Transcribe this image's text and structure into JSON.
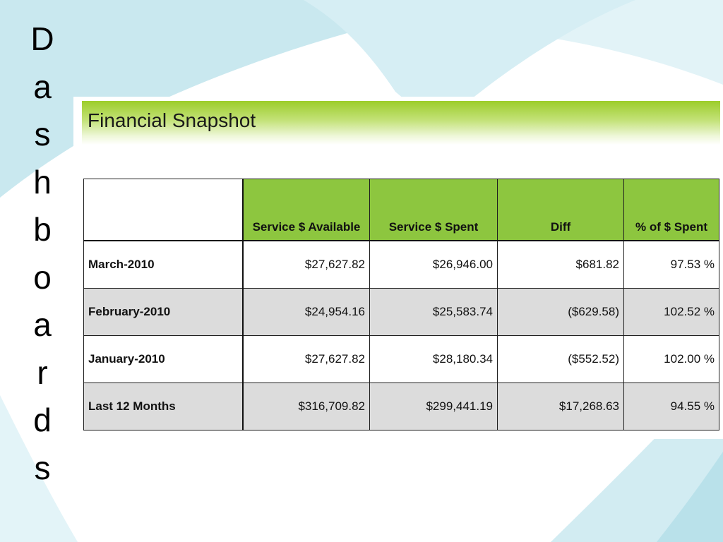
{
  "slide": {
    "vertical_title_letters": [
      "D",
      "a",
      "s",
      "h",
      "b",
      "o",
      "a",
      "r",
      "d",
      "s"
    ]
  },
  "snapshot": {
    "title": "Financial Snapshot",
    "header_color": "#8dc63f",
    "columns": [
      "",
      "Service $ Available",
      "Service $ Spent",
      "Diff",
      "% of $ Spent"
    ],
    "rows": [
      {
        "label": "March-2010",
        "available": "$27,627.82",
        "spent": "$26,946.00",
        "diff": "$681.82",
        "percent": "97.53 %"
      },
      {
        "label": "February-2010",
        "available": "$24,954.16",
        "spent": "$25,583.74",
        "diff": "($629.58)",
        "percent": "102.52 %"
      },
      {
        "label": "January-2010",
        "available": "$27,627.82",
        "spent": "$28,180.34",
        "diff": "($552.52)",
        "percent": "102.00 %"
      },
      {
        "label": "Last 12 Months",
        "available": "$316,709.82",
        "spent": "$299,441.19",
        "diff": "$17,268.63",
        "percent": "94.55 %"
      }
    ]
  }
}
